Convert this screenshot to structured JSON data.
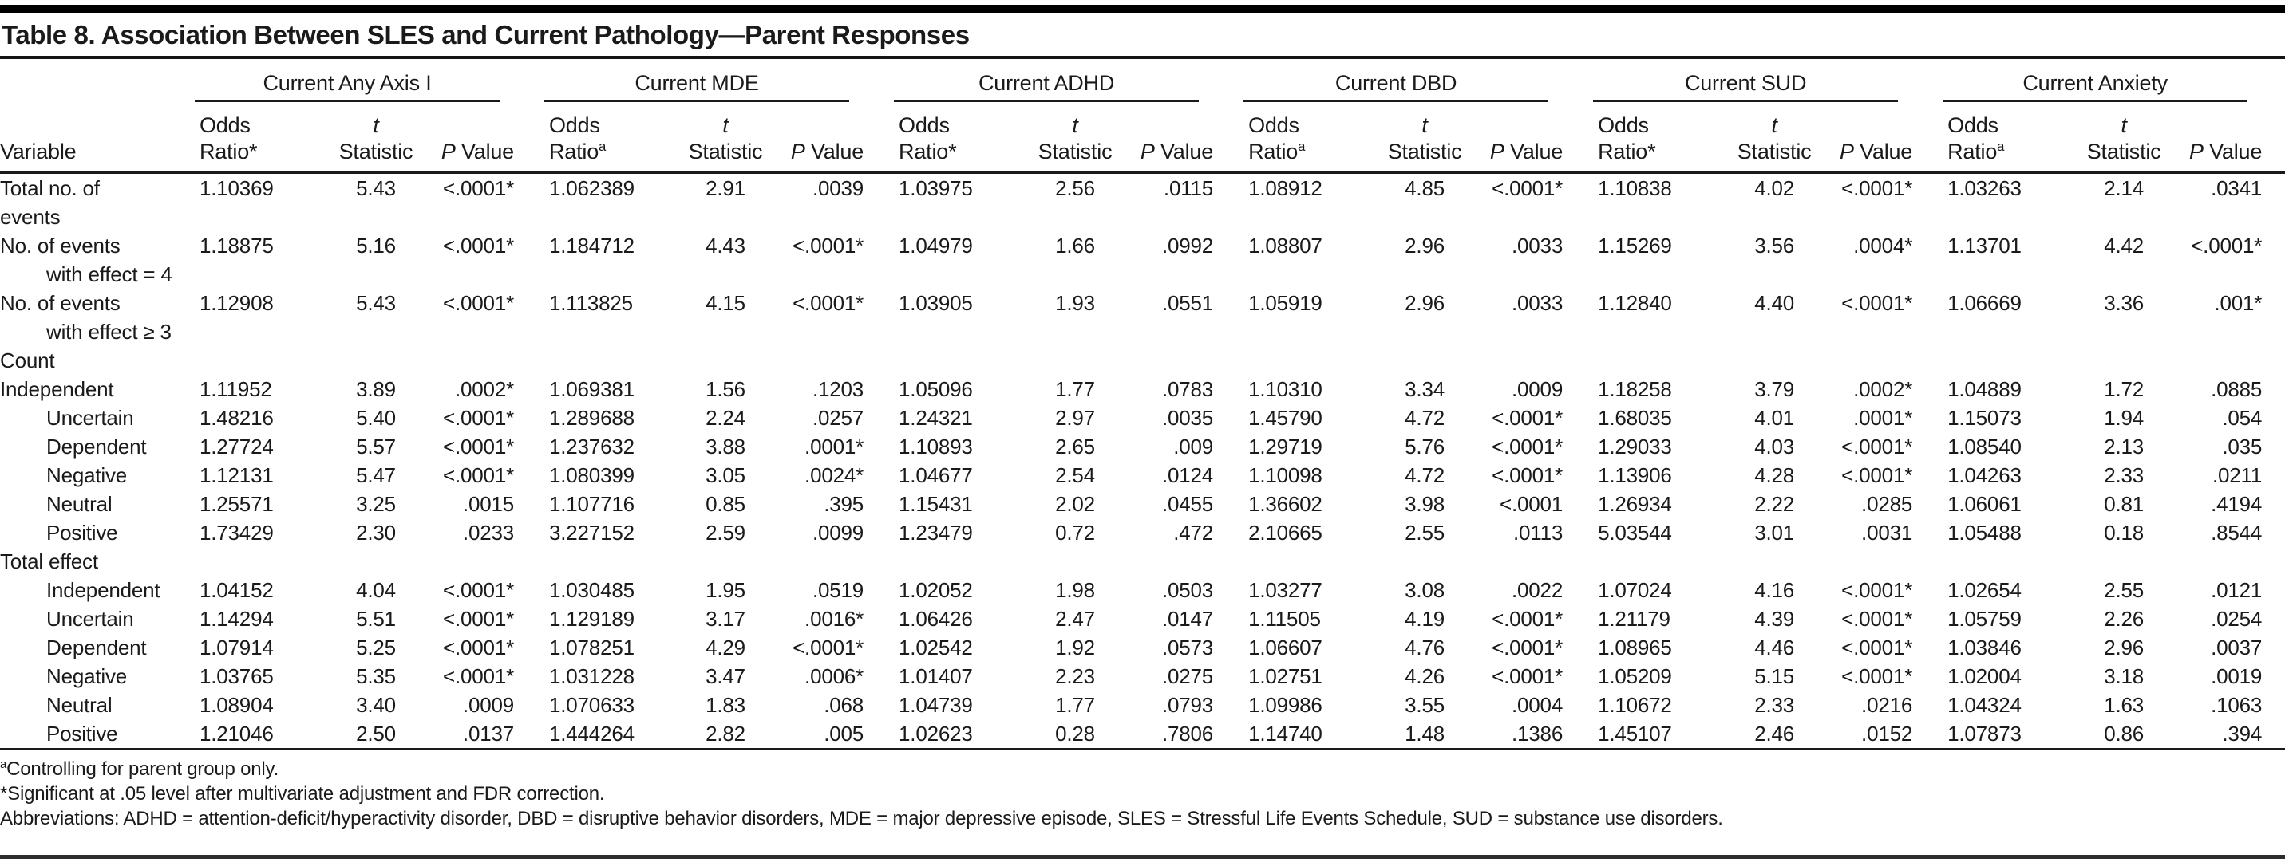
{
  "title": "Table 8. Association Between SLES and Current Pathology—Parent Responses",
  "table": {
    "variable_header": "Variable",
    "groups": [
      {
        "label": "Current Any Axis I",
        "odds_marker": "*"
      },
      {
        "label": "Current MDE",
        "odds_marker": "a"
      },
      {
        "label": "Current ADHD",
        "odds_marker": "*"
      },
      {
        "label": "Current DBD",
        "odds_marker": "a"
      },
      {
        "label": "Current SUD",
        "odds_marker": "*"
      },
      {
        "label": "Current Anxiety",
        "odds_marker": "a"
      }
    ],
    "subheaders": {
      "odds": [
        "Odds",
        "Ratio"
      ],
      "t": [
        "t",
        "Statistic"
      ],
      "p": [
        "P",
        "Value"
      ]
    },
    "rows": [
      {
        "label_lines": [
          [
            "Total no. of",
            0
          ],
          [
            "events",
            0
          ]
        ],
        "indent": 0,
        "section": false,
        "values": [
          "1.10369",
          "5.43",
          "<.0001*",
          "1.062389",
          "2.91",
          ".0039",
          "1.03975",
          "2.56",
          ".0115",
          "1.08912",
          "4.85",
          "<.0001*",
          "1.10838",
          "4.02",
          "<.0001*",
          "1.03263",
          "2.14",
          ".0341"
        ]
      },
      {
        "label_lines": [
          [
            "No. of events",
            0
          ],
          [
            "with effect = 4",
            1
          ]
        ],
        "indent": 0,
        "section": false,
        "values": [
          "1.18875",
          "5.16",
          "<.0001*",
          "1.184712",
          "4.43",
          "<.0001*",
          "1.04979",
          "1.66",
          ".0992",
          "1.08807",
          "2.96",
          ".0033",
          "1.15269",
          "3.56",
          ".0004*",
          "1.13701",
          "4.42",
          "<.0001*"
        ]
      },
      {
        "label_lines": [
          [
            "No. of events",
            0
          ],
          [
            "with effect ≥ 3",
            1
          ]
        ],
        "indent": 0,
        "section": false,
        "values": [
          "1.12908",
          "5.43",
          "<.0001*",
          "1.113825",
          "4.15",
          "<.0001*",
          "1.03905",
          "1.93",
          ".0551",
          "1.05919",
          "2.96",
          ".0033",
          "1.12840",
          "4.40",
          "<.0001*",
          "1.06669",
          "3.36",
          ".001*"
        ]
      },
      {
        "label_lines": [
          [
            "Count",
            0
          ]
        ],
        "indent": 0,
        "section": true,
        "values": []
      },
      {
        "label_lines": [
          [
            "Independent",
            0
          ]
        ],
        "indent": 0,
        "section": false,
        "values": [
          "1.11952",
          "3.89",
          ".0002*",
          "1.069381",
          "1.56",
          ".1203",
          "1.05096",
          "1.77",
          ".0783",
          "1.10310",
          "3.34",
          ".0009",
          "1.18258",
          "3.79",
          ".0002*",
          "1.04889",
          "1.72",
          ".0885"
        ]
      },
      {
        "label_lines": [
          [
            "Uncertain",
            0
          ]
        ],
        "indent": 1,
        "section": false,
        "values": [
          "1.48216",
          "5.40",
          "<.0001*",
          "1.289688",
          "2.24",
          ".0257",
          "1.24321",
          "2.97",
          ".0035",
          "1.45790",
          "4.72",
          "<.0001*",
          "1.68035",
          "4.01",
          ".0001*",
          "1.15073",
          "1.94",
          ".054"
        ]
      },
      {
        "label_lines": [
          [
            "Dependent",
            0
          ]
        ],
        "indent": 1,
        "section": false,
        "values": [
          "1.27724",
          "5.57",
          "<.0001*",
          "1.237632",
          "3.88",
          ".0001*",
          "1.10893",
          "2.65",
          ".009",
          "1.29719",
          "5.76",
          "<.0001*",
          "1.29033",
          "4.03",
          "<.0001*",
          "1.08540",
          "2.13",
          ".035"
        ]
      },
      {
        "label_lines": [
          [
            "Negative",
            0
          ]
        ],
        "indent": 1,
        "section": false,
        "values": [
          "1.12131",
          "5.47",
          "<.0001*",
          "1.080399",
          "3.05",
          ".0024*",
          "1.04677",
          "2.54",
          ".0124",
          "1.10098",
          "4.72",
          "<.0001*",
          "1.13906",
          "4.28",
          "<.0001*",
          "1.04263",
          "2.33",
          ".0211"
        ]
      },
      {
        "label_lines": [
          [
            "Neutral",
            0
          ]
        ],
        "indent": 1,
        "section": false,
        "values": [
          "1.25571",
          "3.25",
          ".0015",
          "1.107716",
          "0.85",
          ".395",
          "1.15431",
          "2.02",
          ".0455",
          "1.36602",
          "3.98",
          "<.0001",
          "1.26934",
          "2.22",
          ".0285",
          "1.06061",
          "0.81",
          ".4194"
        ]
      },
      {
        "label_lines": [
          [
            "Positive",
            0
          ]
        ],
        "indent": 1,
        "section": false,
        "values": [
          "1.73429",
          "2.30",
          ".0233",
          "3.227152",
          "2.59",
          ".0099",
          "1.23479",
          "0.72",
          ".472",
          "2.10665",
          "2.55",
          ".0113",
          "5.03544",
          "3.01",
          ".0031",
          "1.05488",
          "0.18",
          ".8544"
        ]
      },
      {
        "label_lines": [
          [
            "Total effect",
            0
          ]
        ],
        "indent": 0,
        "section": true,
        "values": []
      },
      {
        "label_lines": [
          [
            "Independent",
            0
          ]
        ],
        "indent": 1,
        "section": false,
        "values": [
          "1.04152",
          "4.04",
          "<.0001*",
          "1.030485",
          "1.95",
          ".0519",
          "1.02052",
          "1.98",
          ".0503",
          "1.03277",
          "3.08",
          ".0022",
          "1.07024",
          "4.16",
          "<.0001*",
          "1.02654",
          "2.55",
          ".0121"
        ]
      },
      {
        "label_lines": [
          [
            "Uncertain",
            0
          ]
        ],
        "indent": 1,
        "section": false,
        "values": [
          "1.14294",
          "5.51",
          "<.0001*",
          "1.129189",
          "3.17",
          ".0016*",
          "1.06426",
          "2.47",
          ".0147",
          "1.11505",
          "4.19",
          "<.0001*",
          "1.21179",
          "4.39",
          "<.0001*",
          "1.05759",
          "2.26",
          ".0254"
        ]
      },
      {
        "label_lines": [
          [
            "Dependent",
            0
          ]
        ],
        "indent": 1,
        "section": false,
        "values": [
          "1.07914",
          "5.25",
          "<.0001*",
          "1.078251",
          "4.29",
          "<.0001*",
          "1.02542",
          "1.92",
          ".0573",
          "1.06607",
          "4.76",
          "<.0001*",
          "1.08965",
          "4.46",
          "<.0001*",
          "1.03846",
          "2.96",
          ".0037"
        ]
      },
      {
        "label_lines": [
          [
            "Negative",
            0
          ]
        ],
        "indent": 1,
        "section": false,
        "values": [
          "1.03765",
          "5.35",
          "<.0001*",
          "1.031228",
          "3.47",
          ".0006*",
          "1.01407",
          "2.23",
          ".0275",
          "1.02751",
          "4.26",
          "<.0001*",
          "1.05209",
          "5.15",
          "<.0001*",
          "1.02004",
          "3.18",
          ".0019"
        ]
      },
      {
        "label_lines": [
          [
            "Neutral",
            0
          ]
        ],
        "indent": 1,
        "section": false,
        "values": [
          "1.08904",
          "3.40",
          ".0009",
          "1.070633",
          "1.83",
          ".068",
          "1.04739",
          "1.77",
          ".0793",
          "1.09986",
          "3.55",
          ".0004",
          "1.10672",
          "2.33",
          ".0216",
          "1.04324",
          "1.63",
          ".1063"
        ]
      },
      {
        "label_lines": [
          [
            "Positive",
            0
          ]
        ],
        "indent": 1,
        "section": false,
        "values": [
          "1.21046",
          "2.50",
          ".0137",
          "1.444264",
          "2.82",
          ".005",
          "1.02623",
          "0.28",
          ".7806",
          "1.14740",
          "1.48",
          ".1386",
          "1.45107",
          "2.46",
          ".0152",
          "1.07873",
          "0.86",
          ".394"
        ]
      }
    ]
  },
  "footnotes": [
    {
      "marker": "a",
      "sup": true,
      "text": "Controlling for parent group only."
    },
    {
      "marker": "*",
      "sup": false,
      "text": "Significant at .05 level after multivariate adjustment and FDR correction."
    },
    {
      "marker": "",
      "sup": false,
      "text": "Abbreviations: ADHD = attention-deficit/hyperactivity disorder, DBD = disruptive behavior disorders, MDE = major depressive episode, SLES = Stressful Life Events Schedule, SUD = substance use disorders."
    }
  ],
  "colors": {
    "text": "#1a1a1a",
    "rule": "#1a1a1a",
    "background": "#ffffff"
  }
}
